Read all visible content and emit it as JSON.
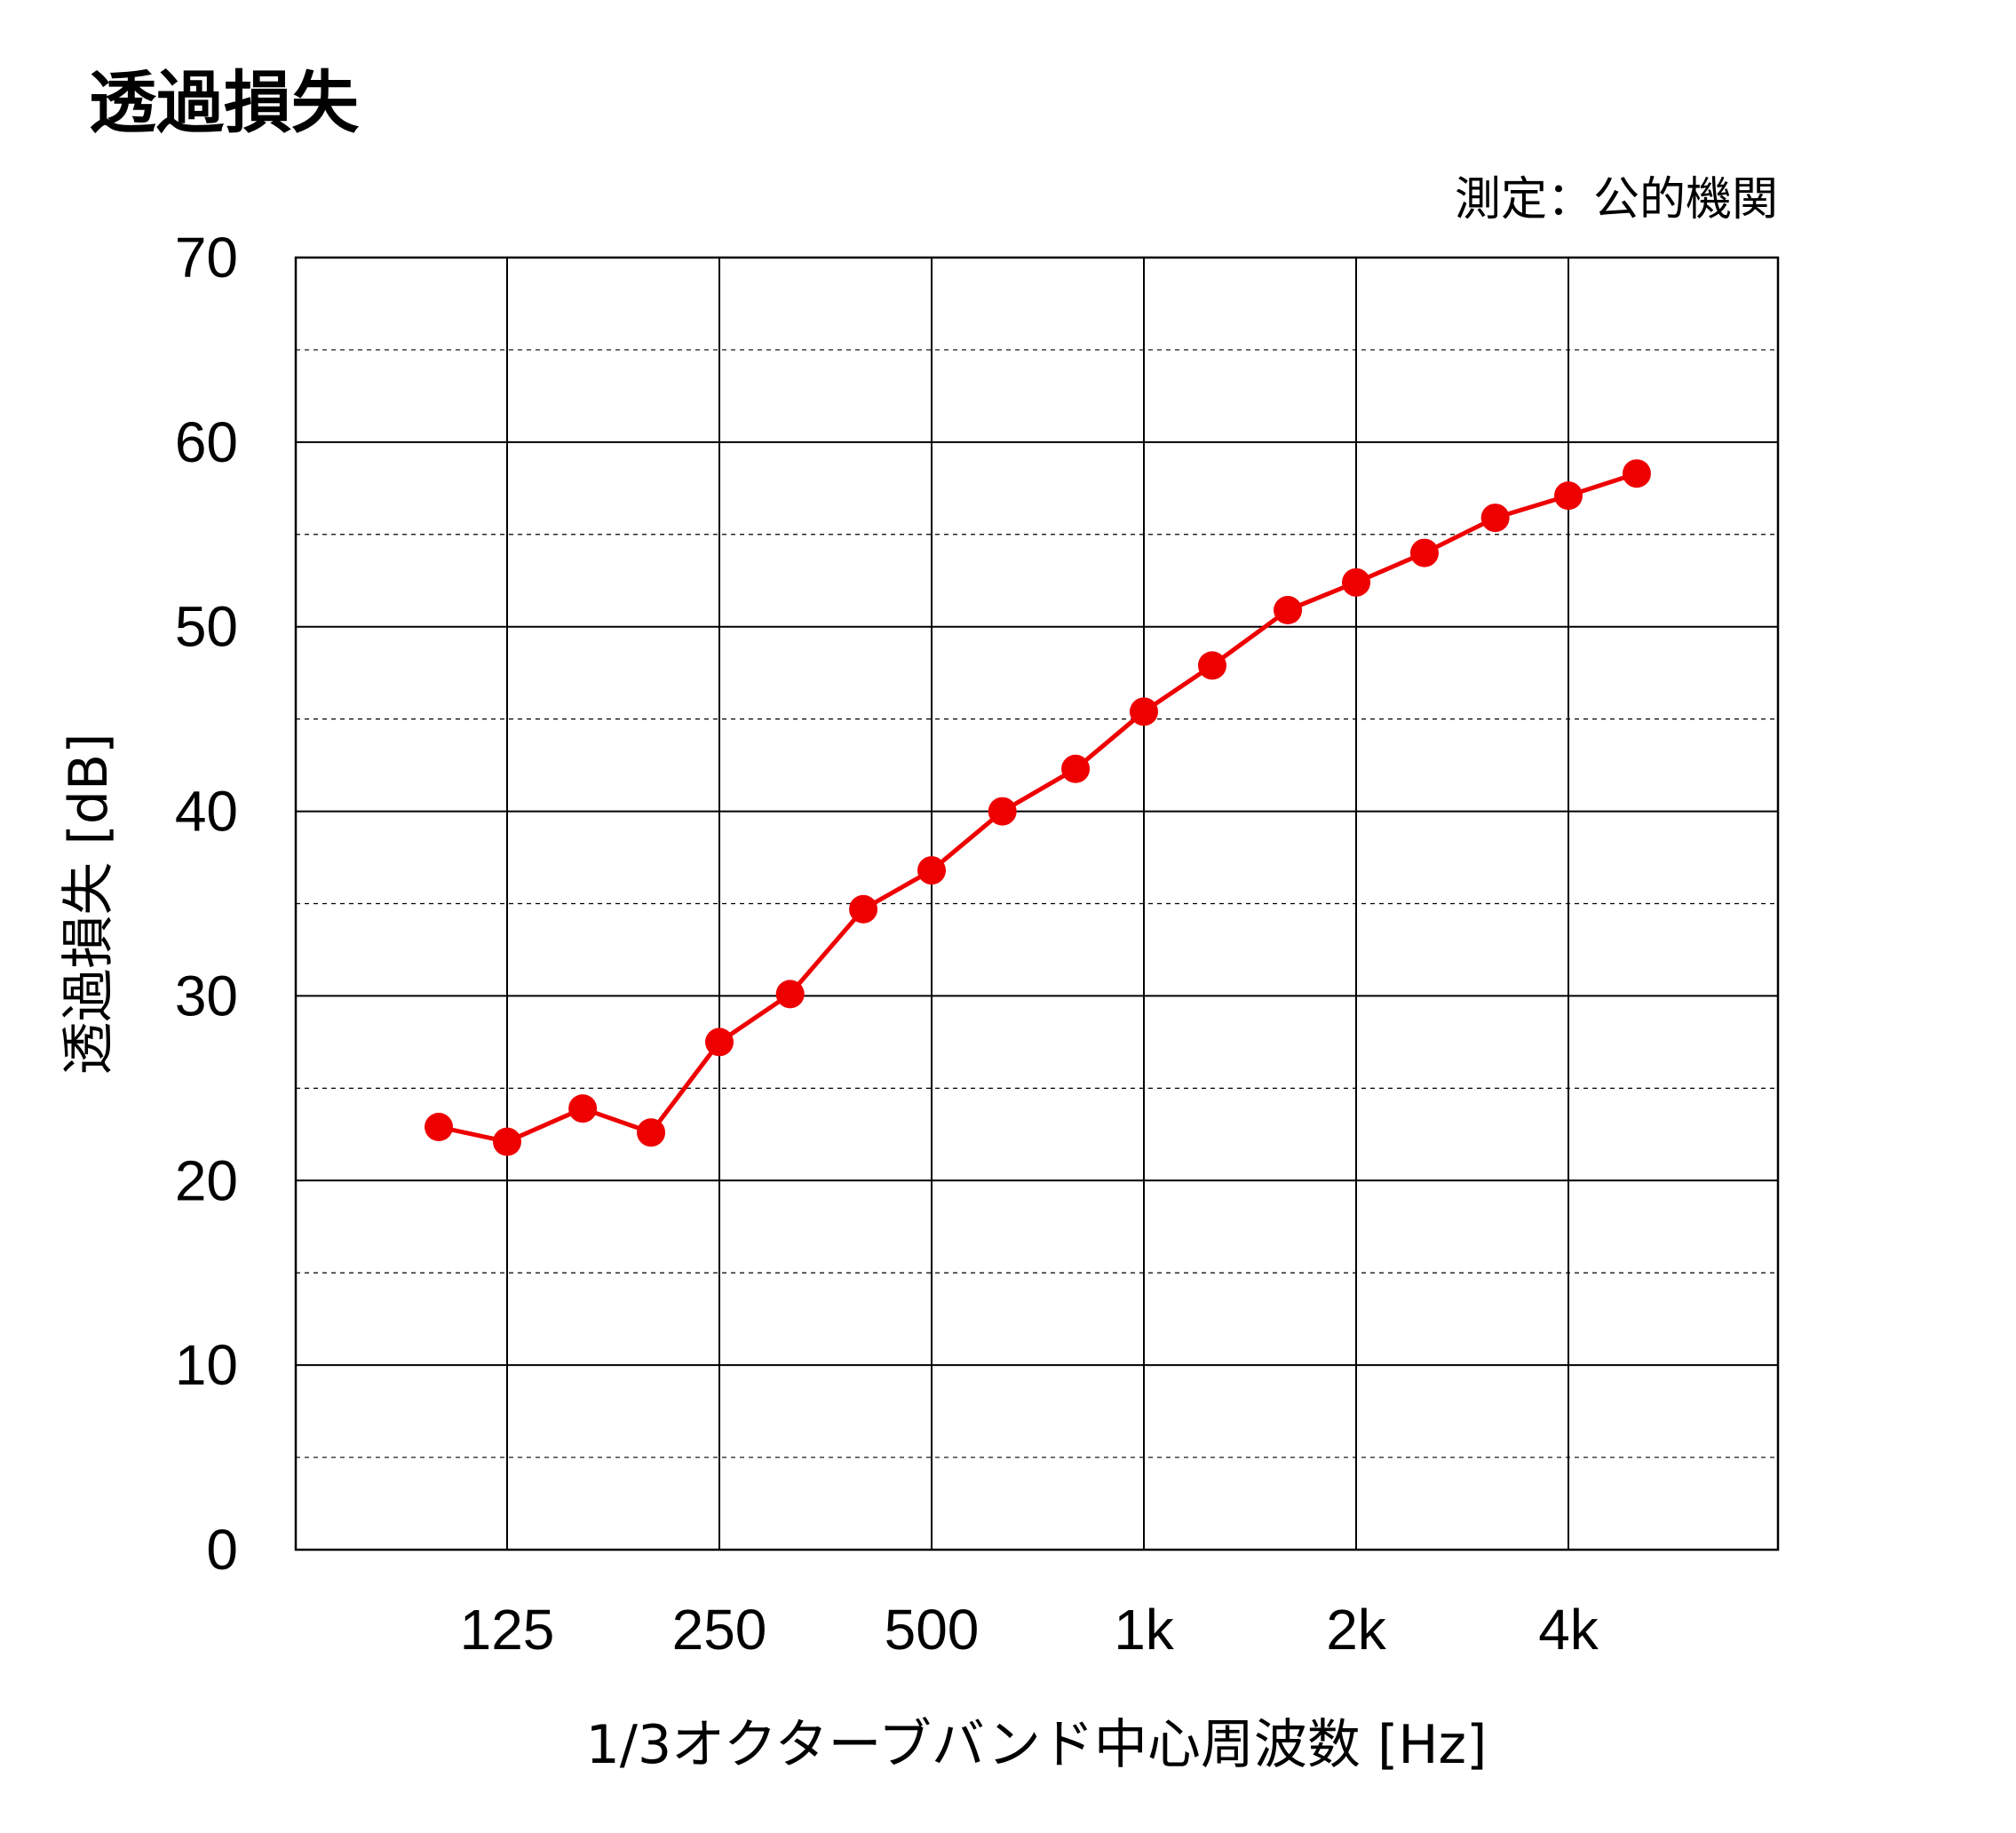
{
  "chart_data": {
    "type": "line",
    "title": "透過損失",
    "note": "測定：公的機関",
    "xlabel": "1/3オクターブバンド中心周波数 [Hz]",
    "ylabel": "透過損失 [dB]",
    "ylim": [
      0,
      70
    ],
    "y_major_step": 10,
    "y_minor_step": 5,
    "y_ticks": [
      "0",
      "10",
      "20",
      "30",
      "40",
      "50",
      "60",
      "70"
    ],
    "x_scale": "log (1/3 octave bands)",
    "x_tick_labels": [
      "125",
      "250",
      "500",
      "1k",
      "2k",
      "4k"
    ],
    "x_tick_values": [
      125,
      250,
      500,
      1000,
      2000,
      4000
    ],
    "grid": true,
    "series": [
      {
        "color": "#ee0000",
        "x": [
          100,
          125,
          160,
          200,
          250,
          315,
          400,
          500,
          630,
          800,
          1000,
          1250,
          1600,
          2000,
          2500,
          3150,
          4000,
          5000
        ],
        "y": [
          22.9,
          22.1,
          23.9,
          22.6,
          27.5,
          30.1,
          34.7,
          36.8,
          40.0,
          42.3,
          45.4,
          47.9,
          50.9,
          52.4,
          54.0,
          55.9,
          57.1,
          58.3
        ]
      }
    ]
  }
}
